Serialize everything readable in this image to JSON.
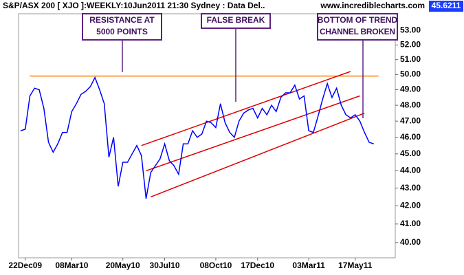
{
  "chart_data": {
    "type": "line",
    "title": "S&P/ASX 200 [ XJO ]:WEEKLY:10Jun2011 21:30 Sydney : Data Del..",
    "source": "www.incrediblecharts.com",
    "last_price": 45.6211,
    "log_scale": true,
    "categories": [
      null,
      "22Dec09",
      null,
      null,
      null,
      null,
      null,
      null,
      null,
      null,
      null,
      "08Mar10",
      null,
      null,
      null,
      null,
      null,
      null,
      null,
      null,
      null,
      null,
      "20May10",
      null,
      null,
      null,
      null,
      null,
      null,
      null,
      null,
      "30Jul10",
      null,
      null,
      null,
      null,
      null,
      null,
      null,
      null,
      null,
      null,
      "08Oct10",
      null,
      null,
      null,
      null,
      null,
      null,
      null,
      null,
      "17Dec10",
      null,
      null,
      null,
      null,
      null,
      null,
      null,
      null,
      null,
      null,
      "03Mar11",
      null,
      null,
      null,
      null,
      null,
      null,
      null,
      null,
      null,
      "17May11",
      null,
      null,
      null,
      null
    ],
    "series": [
      {
        "name": "XJO",
        "color": "#0000ff",
        "values": [
          46.4,
          46.5,
          48.6,
          49.1,
          49.0,
          47.8,
          45.7,
          45.1,
          45.6,
          46.3,
          46.3,
          47.6,
          48.1,
          48.7,
          48.9,
          49.2,
          49.8,
          49.0,
          48.1,
          44.8,
          46.0,
          43.1,
          44.5,
          44.5,
          45.0,
          45.5,
          44.9,
          42.4,
          43.9,
          44.3,
          44.7,
          45.6,
          44.6,
          44.3,
          43.8,
          45.6,
          45.6,
          46.4,
          46.0,
          46.2,
          47.0,
          46.9,
          46.6,
          48.1,
          46.9,
          46.3,
          46.0,
          47.0,
          47.5,
          47.7,
          47.8,
          47.2,
          47.8,
          47.4,
          48.0,
          47.6,
          48.5,
          48.8,
          48.8,
          49.3,
          48.4,
          48.6,
          46.4,
          46.3,
          47.3,
          48.4,
          49.4,
          48.5,
          49.1,
          48.0,
          47.4,
          47.2,
          47.4,
          47.0,
          46.3,
          45.7,
          45.6
        ]
      }
    ],
    "ylim": [
      39.2,
      54.2
    ],
    "yticks": [
      {
        "value": 40,
        "label": "40.00"
      },
      {
        "value": 41,
        "label": "41.00"
      },
      {
        "value": 42,
        "label": "42.00"
      },
      {
        "value": 43,
        "label": "43.00"
      },
      {
        "value": 44,
        "label": "44.00"
      },
      {
        "value": 45,
        "label": "45.00"
      },
      {
        "value": 46,
        "label": "46.00"
      },
      {
        "value": 47,
        "label": "47.00"
      },
      {
        "value": 48,
        "label": "48.00"
      },
      {
        "value": 49,
        "label": "49.00"
      },
      {
        "value": 50,
        "label": "50.00"
      },
      {
        "value": 51,
        "label": "51.00"
      },
      {
        "value": 52,
        "label": "52.00"
      },
      {
        "value": 53,
        "label": "53.00"
      }
    ],
    "lines": [
      {
        "color": "#ff8000",
        "from": [
          2,
          49.9
        ],
        "to": [
          77,
          49.9
        ]
      },
      {
        "color": "#e00000",
        "from": [
          26,
          45.5
        ],
        "to": [
          71,
          50.2
        ]
      },
      {
        "color": "#e00000",
        "from": [
          27,
          44.0
        ],
        "to": [
          73,
          48.6
        ]
      },
      {
        "color": "#e00000",
        "from": [
          28,
          42.5
        ],
        "to": [
          74,
          47.5
        ]
      }
    ],
    "annotations": [
      {
        "lines": [
          "RESISTANCE AT",
          "5000 POINTS"
        ]
      },
      {
        "lines": [
          "FALSE BREAK"
        ]
      },
      {
        "lines": [
          "BOTTOM OF TREND",
          "CHANNEL BROKEN"
        ]
      }
    ]
  }
}
